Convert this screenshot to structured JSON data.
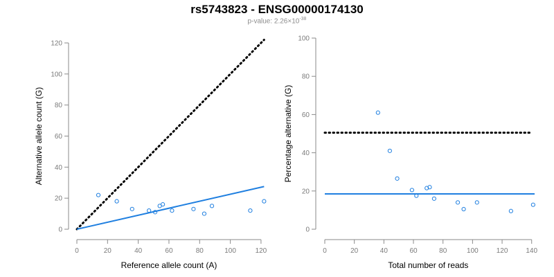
{
  "title": "rs5743823 - ENSG00000174130",
  "subtitle": {
    "prefix": "p-value: 2.26×10",
    "exponent": "-38"
  },
  "colors": {
    "series": "#1f7fe0",
    "reference_line": "#000000",
    "axis": "#8a8a8a",
    "tick_label": "#7a7a7a"
  },
  "chart_data": [
    {
      "type": "scatter",
      "xlabel": "Reference allele count (A)",
      "ylabel": "Alternative allele count (G)",
      "xlim": [
        0,
        125
      ],
      "ylim": [
        0,
        120
      ],
      "x_ticks": [
        0,
        20,
        40,
        60,
        80,
        100,
        120
      ],
      "y_ticks": [
        0,
        20,
        40,
        60,
        80,
        100,
        120
      ],
      "grid": false,
      "points": [
        {
          "x": 14,
          "y": 22
        },
        {
          "x": 26,
          "y": 18
        },
        {
          "x": 36,
          "y": 13
        },
        {
          "x": 47,
          "y": 12
        },
        {
          "x": 51,
          "y": 11
        },
        {
          "x": 54,
          "y": 15
        },
        {
          "x": 56,
          "y": 16
        },
        {
          "x": 62,
          "y": 12
        },
        {
          "x": 76,
          "y": 13
        },
        {
          "x": 83,
          "y": 10
        },
        {
          "x": 88,
          "y": 15
        },
        {
          "x": 113,
          "y": 12
        },
        {
          "x": 122,
          "y": 18
        }
      ],
      "fit_line": {
        "x": [
          0,
          122
        ],
        "y": [
          0,
          27.5
        ]
      },
      "expected_line": {
        "x": [
          0,
          122
        ],
        "y": [
          0,
          122
        ]
      }
    },
    {
      "type": "scatter",
      "xlabel": "Total number of reads",
      "ylabel": "Percentage alternative (G)",
      "xlim": [
        0,
        142
      ],
      "ylim": [
        0,
        100
      ],
      "x_ticks": [
        0,
        20,
        40,
        60,
        80,
        100,
        120,
        140
      ],
      "y_ticks": [
        0,
        20,
        40,
        60,
        80,
        100
      ],
      "grid": false,
      "points": [
        {
          "x": 36,
          "y": 61
        },
        {
          "x": 44,
          "y": 41
        },
        {
          "x": 49,
          "y": 26.5
        },
        {
          "x": 59,
          "y": 20.5
        },
        {
          "x": 62,
          "y": 17.5
        },
        {
          "x": 69,
          "y": 21.5
        },
        {
          "x": 71,
          "y": 22
        },
        {
          "x": 74,
          "y": 16
        },
        {
          "x": 90,
          "y": 14
        },
        {
          "x": 94,
          "y": 10.5
        },
        {
          "x": 103,
          "y": 14
        },
        {
          "x": 126,
          "y": 9.5
        },
        {
          "x": 141,
          "y": 12.8
        }
      ],
      "fit_line": {
        "x": [
          0,
          142
        ],
        "y": [
          18.5,
          18.5
        ]
      },
      "expected_line": {
        "x": [
          0,
          140
        ],
        "y": [
          50.5,
          50.5
        ]
      }
    }
  ]
}
